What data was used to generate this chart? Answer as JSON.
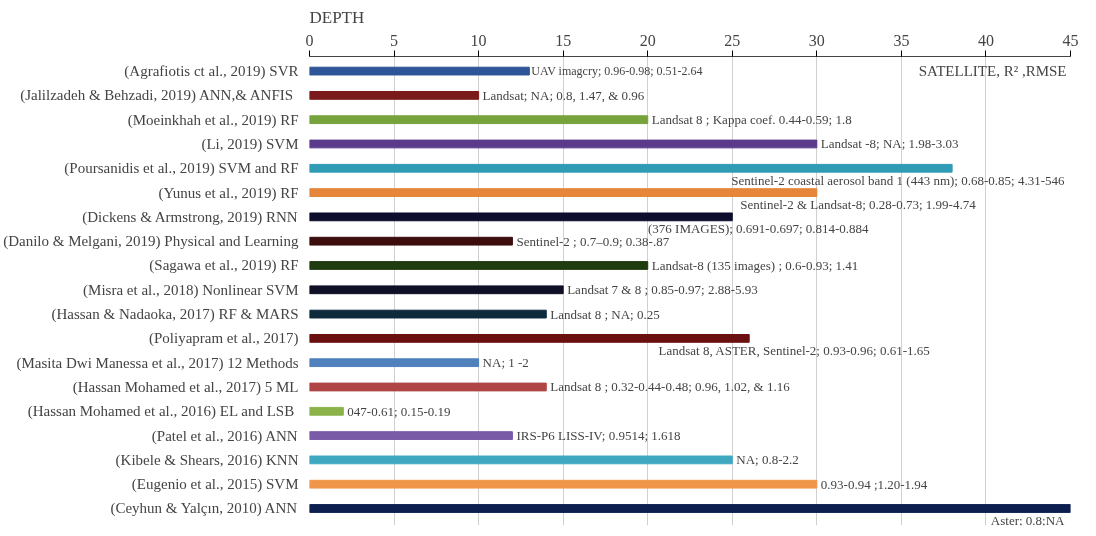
{
  "chart_data": {
    "type": "bar",
    "orientation": "horizontal",
    "title": "DEPTH",
    "categories": [
      "(Agrafiotis ct al., 2019) SVR",
      "(Jalilzadeh & Behzadi, 2019) ANN,&  ANFIS",
      "(Moeinkhah et al., 2019) RF",
      "(Li, 2019) SVM",
      "(Poursanidis et al., 2019) SVM and RF",
      "(Yunus et al., 2019) RF",
      "(Dickens & Armstrong, 2019) RNN",
      "(Danilo & Melgani, 2019) Physical and Learning",
      "(Sagawa et al., 2019) RF",
      "(Misra et al., 2018) Nonlinear SVM",
      "(Hassan & Nadaoka, 2017) RF & MARS",
      "(Poliyapram et al., 2017)",
      "(Masita Dwi Manessa et al., 2017) 12 Methods",
      "(Hassan Mohamed et al., 2017) 5 ML",
      "(Hassan Mohamed et al., 2016) EL  and LSB",
      "(Patel et al., 2016) ANN",
      "(Kibele & Shears, 2016) KNN",
      "(Eugenio et al., 2015) SVM",
      "(Ceyhun & Yalçın, 2010) ANN"
    ],
    "values": [
      13,
      10,
      20,
      30,
      38,
      30,
      25,
      12,
      20,
      15,
      14,
      26,
      10,
      14,
      2,
      12,
      25,
      30,
      45
    ],
    "colors": [
      "#2e5597",
      "#7b1a1a",
      "#77a33c",
      "#5b3a8c",
      "#2f9bb5",
      "#e5863a",
      "#0d0d2e",
      "#3d0d0d",
      "#1f3b10",
      "#0f0f26",
      "#0e2a3d",
      "#6b1010",
      "#4f81bd",
      "#b04545",
      "#8cb34a",
      "#7a5ba8",
      "#3fa8c0",
      "#f0964a",
      "#0c1f4f"
    ],
    "xlim": [
      0,
      45
    ],
    "xticks": [
      0,
      5,
      10,
      15,
      20,
      25,
      30,
      35,
      40,
      45
    ],
    "grid": "x",
    "annotations": [
      "SATELLITE, R² ,RMSE",
      {
        "text": "UAV imagcry; 0.96-0.98; 0.51-2.64",
        "x": 13,
        "y": "(Agrafiotis ct al., 2019) SVR"
      },
      {
        "text": "Landsat; NA; 0.8, 1.47, & 0.96",
        "x": 10,
        "y": "(Jalilzadeh & Behzadi, 2019) ANN,&  ANFIS"
      },
      {
        "text": "Landsat 8 ; Kappa coef. 0.44-0.59; 1.8",
        "x": 20,
        "y": "(Moeinkhah et al., 2019) RF"
      },
      {
        "text": "Landsat -8; NA; 1.98-3.03",
        "x": 30,
        "y": "(Li, 2019) SVM"
      },
      {
        "text": "Sentinel-2 coastal aerosol band 1 (443 nm); 0.68-0.85; 4.31-546",
        "x": 38,
        "y": "(Poursanidis et al., 2019) SVM and RF"
      },
      {
        "text": "Sentinel-2 & Landsat-8; 0.28-0.73; 1.99-4.74",
        "x": 30,
        "y": "(Yunus et al., 2019) RF"
      },
      {
        "text": "(376 IMAGES); 0.691-0.697; 0.814-0.884",
        "x": 25,
        "y": "(Dickens & Armstrong, 2019) RNN"
      },
      {
        "text": "Sentinel-2 ; 0.7–0.9; 0.38-.87",
        "x": 12,
        "y": "(Danilo & Melgani, 2019) Physical and Learning"
      },
      {
        "text": "Landsat-8 (135 images) ; 0.6-0.93; 1.41",
        "x": 20,
        "y": "(Sagawa et al., 2019) RF"
      },
      {
        "text": "Landsat 7 &  8 ; 0.85-0.97; 2.88-5.93",
        "x": 15,
        "y": "(Misra et al., 2018) Nonlinear SVM"
      },
      {
        "text": "Landsat 8 ; NA; 0.25",
        "x": 14,
        "y": "(Hassan & Nadaoka, 2017) RF & MARS"
      },
      {
        "text": "Landsat 8, ASTER, Sentinel-2; 0.93-0.96; 0.61-1.65",
        "x": 26,
        "y": "(Poliyapram et al., 2017)"
      },
      {
        "text": "NA; 1 -2",
        "x": 10,
        "y": "(Masita Dwi Manessa et al., 2017) 12 Methods"
      },
      {
        "text": "Landsat 8 ; 0.32-0.44-0.48; 0.96, 1.02, & 1.16",
        "x": 14,
        "y": "(Hassan Mohamed et al., 2017) 5 ML"
      },
      {
        "text": "047-0.61; 0.15-0.19",
        "x": 2,
        "y": "(Hassan Mohamed et al., 2016) EL  and LSB"
      },
      {
        "text": "IRS-P6 LISS-IV; 0.9514; 1.618",
        "x": 12,
        "y": "(Patel et al., 2016) ANN"
      },
      {
        "text": "NA; 0.8-2.2",
        "x": 25,
        "y": "(Kibele & Shears, 2016) KNN"
      },
      {
        "text": "0.93-0.94 ;1.20-1.94",
        "x": 30,
        "y": "(Eugenio et al., 2015) SVM"
      },
      {
        "text": "Aster; 0.8;NA",
        "x": 45,
        "y": "(Ceyhun & Yalçın, 2010) ANN"
      }
    ]
  }
}
